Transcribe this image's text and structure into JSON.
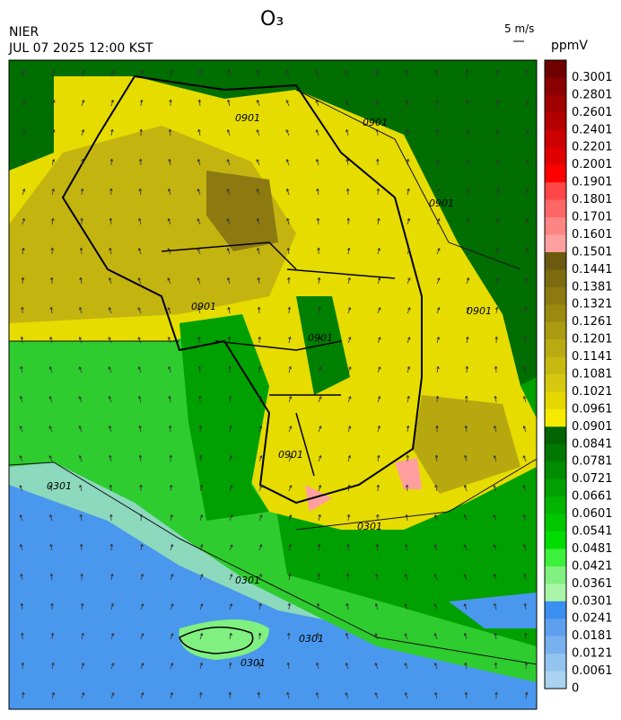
{
  "header": {
    "title": "O₃",
    "agency": "NIER",
    "datetime": "JUL 07 2025 12:00 KST",
    "wind_scale": "5 m/s"
  },
  "colorbar": {
    "unit": "ppmV",
    "labels": [
      "0.3001",
      "0.2801",
      "0.2601",
      "0.2401",
      "0.2201",
      "0.2001",
      "0.1901",
      "0.1801",
      "0.1701",
      "0.1601",
      "0.1501",
      "0.1441",
      "0.1381",
      "0.1321",
      "0.1261",
      "0.1201",
      "0.1141",
      "0.1081",
      "0.1021",
      "0.0961",
      "0.0901",
      "0.0841",
      "0.0781",
      "0.0721",
      "0.0661",
      "0.0601",
      "0.0541",
      "0.0481",
      "0.0421",
      "0.0361",
      "0.0301",
      "0.0241",
      "0.0181",
      "0.0121",
      "0.0061",
      "0"
    ],
    "colors": [
      "#6e0000",
      "#8b0000",
      "#a00000",
      "#b50000",
      "#cc0000",
      "#e00000",
      "#ff0000",
      "#ff4646",
      "#ff6666",
      "#ff8585",
      "#ffa0a0",
      "#6b5a10",
      "#7d6b10",
      "#8c7a10",
      "#9b8a10",
      "#a99a10",
      "#b8aa10",
      "#c7b910",
      "#d6c810",
      "#e4d800",
      "#f5ea00",
      "#006400",
      "#007800",
      "#008c00",
      "#00a000",
      "#00b400",
      "#00c800",
      "#00dc00",
      "#3cf03c",
      "#80f080",
      "#a8f5a8",
      "#3a8ff0",
      "#5fa0ee",
      "#79b0ef",
      "#93c3ef",
      "#a9d3f0"
    ]
  },
  "contour_labels": [
    "0901",
    "0901",
    "0901",
    "0901",
    "0901",
    "0901",
    "0901",
    "0301",
    "0301",
    "0301",
    "0301",
    "0301"
  ]
}
